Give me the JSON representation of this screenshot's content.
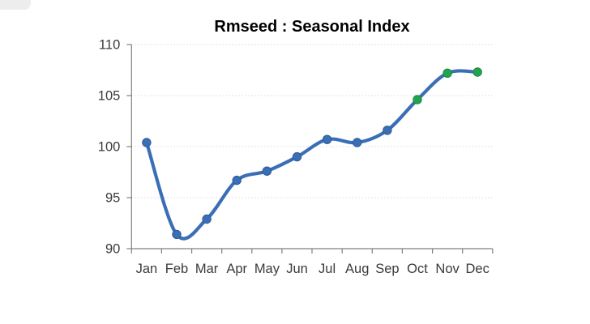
{
  "chart_data": {
    "type": "line",
    "title": "Rmseed : Seasonal Index",
    "xlabel": "",
    "ylabel": "",
    "categories": [
      "Jan",
      "Feb",
      "Mar",
      "Apr",
      "May",
      "Jun",
      "Jul",
      "Aug",
      "Sep",
      "Oct",
      "Nov",
      "Dec"
    ],
    "series": [
      {
        "name": "Seasonal Index",
        "values": [
          100.4,
          91.4,
          92.9,
          96.7,
          97.6,
          99.0,
          100.7,
          100.4,
          101.6,
          104.6,
          107.2,
          107.3
        ]
      }
    ],
    "ylim": [
      90,
      110
    ],
    "y_ticks": [
      90,
      95,
      100,
      105,
      110
    ],
    "grid": "horizontal dotted gridlines at y ticks, none vertical",
    "legend_position": "none",
    "smooth": true,
    "highlight_indices": [
      9,
      10,
      11
    ],
    "colors": {
      "line": "#3A6EB5",
      "marker": "#3A6EB5",
      "marker_stroke": "#2E5B99",
      "marker_highlight": "#22A44F",
      "marker_highlight_stroke": "#188A3C",
      "axis": "#808080",
      "gridline": "#D9D9D9",
      "tick_label": "#3A3A3A",
      "title": "#000000"
    }
  }
}
